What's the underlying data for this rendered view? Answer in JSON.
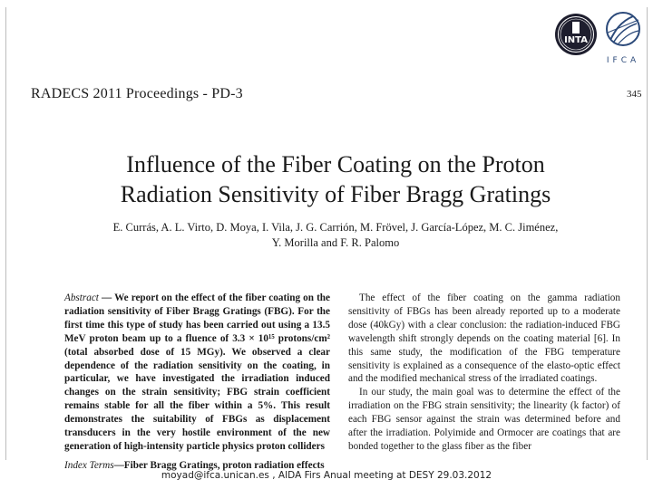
{
  "header": {
    "proceedings": "RADECS 2011 Proceedings - PD-3",
    "page_number": "345"
  },
  "logos": {
    "inta": {
      "text": "INTA",
      "color": "#1e1e2e"
    },
    "ifca": {
      "text": "IFCA",
      "color": "#2c4a7a"
    }
  },
  "paper": {
    "title_line1": "Influence of the Fiber Coating on the Proton",
    "title_line2": "Radiation Sensitivity of Fiber Bragg Gratings",
    "authors_line1": "E. Currás, A. L. Virto, D. Moya, I. Vila, J. G. Carrión, M. Frövel, J. García-López, M. C. Jiménez,",
    "authors_line2": "Y. Morilla and F. R. Palomo",
    "abstract_label": "Abstract",
    "abstract_text": "We report on the effect of the fiber coating on the radiation sensitivity of Fiber Bragg Gratings (FBG). For the first time this type of study has been carried out using a 13.5 MeV proton beam up to a fluence of 3.3 × 10¹⁵ protons/cm² (total absorbed dose of 15 MGy). We observed a clear dependence of the radiation sensitivity on the coating, in particular, we have investigated the irradiation induced changes on the strain sensitivity; FBG strain coefficient remains stable for all the fiber within a 5%. This result demonstrates the suitability of FBGs as displacement transducers in the very hostile environment of the new generation of high-intensity particle physics proton colliders",
    "index_terms_label": "Index Terms",
    "index_terms_text": "Fiber Bragg Gratings, proton radiation effects",
    "right_para1": "The effect of the fiber coating on the gamma radiation sensitivity of FBGs has been already reported up to a moderate dose (40kGy) with a clear conclusion: the radiation-induced FBG wavelength shift strongly depends on the coating material [6]. In this same study, the modification of the FBG temperature sensitivity is explained as a consequence of the elasto-optic effect and the modified mechanical stress of the irradiated coatings.",
    "right_para2": "In our study, the main goal was to determine the effect of the irradiation on the FBG strain sensitivity; the linearity (k factor) of each FBG sensor against the strain was determined before and after the irradiation. Polyimide and Ormocer are coatings that are bonded together to the glass fiber as the fiber"
  },
  "footer": {
    "text": "moyad@ifca.unican.es , AIDA Firs Anual meeting at DESY 29.03.2012"
  }
}
